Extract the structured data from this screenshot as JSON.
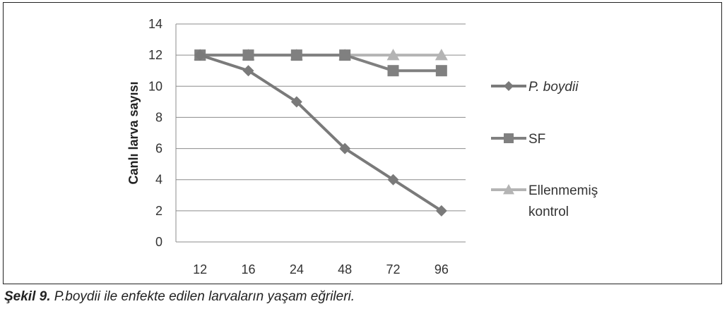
{
  "chart_data": {
    "type": "line",
    "categories": [
      "12",
      "16",
      "24",
      "48",
      "72",
      "96"
    ],
    "ylim": [
      0,
      14
    ],
    "yticks": [
      0,
      2,
      4,
      6,
      8,
      10,
      12,
      14
    ],
    "ylabel": "Canlı larva sayısı",
    "xlabel": "",
    "grid": true,
    "legend_position": "right",
    "series": [
      {
        "name": "P. boydii",
        "values": [
          12,
          11,
          9,
          6,
          4,
          2
        ],
        "marker": "diamond",
        "color": "#7a7a7a",
        "italic": true
      },
      {
        "name": "SF",
        "values": [
          12,
          12,
          12,
          12,
          11,
          11
        ],
        "marker": "square",
        "color": "#808080",
        "italic": false
      },
      {
        "name_lines": [
          "Ellenmemiş",
          "kontrol"
        ],
        "values": [
          12,
          12,
          12,
          12,
          12,
          12
        ],
        "marker": "triangle",
        "color": "#b4b4b4",
        "italic": false
      }
    ]
  },
  "caption": {
    "prefix": "Şekil 9.",
    "text": " P.boydii ile enfekte edilen larvaların yaşam eğrileri."
  }
}
